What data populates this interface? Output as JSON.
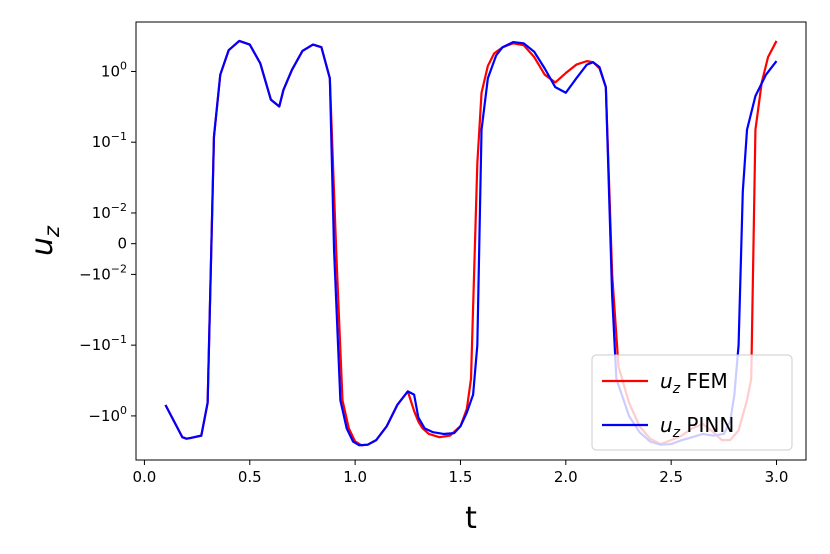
{
  "chart_data": {
    "type": "line",
    "xlabel": "t",
    "ylabel": "u",
    "ylabel_subscript": "z",
    "xlim": [
      -0.04,
      3.14
    ],
    "x_ticks": [
      0.0,
      0.5,
      1.0,
      1.5,
      2.0,
      2.5,
      3.0
    ],
    "x_tick_labels": [
      "0.0",
      "0.5",
      "1.0",
      "1.5",
      "2.0",
      "2.5",
      "3.0"
    ],
    "y_scale": "symlog",
    "y_linthresh": 0.01,
    "ylim": [
      -4.2,
      5.0
    ],
    "y_ticks": [
      1,
      0.1,
      0.01,
      0,
      -0.01,
      -0.1,
      -1
    ],
    "y_tick_labels": [
      {
        "base": "10",
        "exp": "0"
      },
      {
        "base": "10",
        "exp": "−1"
      },
      {
        "base": "10",
        "exp": "−2"
      },
      {
        "base": "0",
        "exp": ""
      },
      {
        "base": "−10",
        "exp": "−2"
      },
      {
        "base": "−10",
        "exp": "−1"
      },
      {
        "base": "−10",
        "exp": "0"
      }
    ],
    "grid": false,
    "legend_position": "lower-right",
    "series": [
      {
        "name": "u_z FEM",
        "legend_main": "u",
        "legend_sub": "z",
        "legend_rest": "FEM",
        "color": "#ff0000",
        "x": [
          0.1,
          0.15,
          0.18,
          0.2,
          0.22,
          0.27,
          0.3,
          0.33,
          0.36,
          0.4,
          0.45,
          0.5,
          0.55,
          0.6,
          0.64,
          0.66,
          0.7,
          0.75,
          0.8,
          0.84,
          0.88,
          0.91,
          0.94,
          0.97,
          1.0,
          1.03,
          1.06,
          1.1,
          1.15,
          1.2,
          1.25,
          1.28,
          1.3,
          1.32,
          1.35,
          1.4,
          1.45,
          1.5,
          1.53,
          1.55,
          1.58,
          1.6,
          1.63,
          1.66,
          1.7,
          1.75,
          1.8,
          1.85,
          1.9,
          1.95,
          2.0,
          2.05,
          2.1,
          2.13,
          2.16,
          2.19,
          2.22,
          2.25,
          2.3,
          2.35,
          2.4,
          2.45,
          2.5,
          2.55,
          2.6,
          2.65,
          2.7,
          2.74,
          2.78,
          2.82,
          2.86,
          2.88,
          2.9,
          2.93,
          2.96,
          3.0
        ],
        "y": [
          -0.7,
          -1.35,
          -2.0,
          -2.1,
          -2.05,
          -1.9,
          -0.65,
          0.12,
          0.9,
          2.0,
          2.7,
          2.4,
          1.3,
          0.4,
          0.32,
          0.55,
          1.05,
          1.95,
          2.4,
          2.2,
          0.8,
          -0.002,
          -0.6,
          -1.5,
          -2.3,
          -2.6,
          -2.55,
          -2.2,
          -1.4,
          -0.7,
          -0.45,
          -0.85,
          -1.2,
          -1.5,
          -1.8,
          -2.0,
          -1.9,
          -1.4,
          -0.8,
          -0.3,
          0.05,
          0.5,
          1.2,
          1.8,
          2.2,
          2.5,
          2.35,
          1.6,
          0.9,
          0.7,
          0.95,
          1.25,
          1.4,
          1.35,
          1.1,
          0.6,
          -0.01,
          -0.2,
          -0.65,
          -1.4,
          -2.1,
          -2.5,
          -2.2,
          -1.9,
          -1.5,
          -1.3,
          -1.7,
          -2.2,
          -2.2,
          -1.6,
          -0.6,
          -0.3,
          0.15,
          0.7,
          1.6,
          2.7
        ]
      },
      {
        "name": "u_z PINN",
        "legend_main": "u",
        "legend_sub": "z",
        "legend_rest": "PINN",
        "color": "#0000ff",
        "x": [
          0.1,
          0.15,
          0.18,
          0.2,
          0.22,
          0.27,
          0.3,
          0.33,
          0.36,
          0.4,
          0.45,
          0.5,
          0.55,
          0.6,
          0.64,
          0.66,
          0.7,
          0.75,
          0.8,
          0.84,
          0.88,
          0.9,
          0.93,
          0.96,
          0.99,
          1.02,
          1.06,
          1.1,
          1.15,
          1.2,
          1.25,
          1.28,
          1.3,
          1.33,
          1.37,
          1.42,
          1.47,
          1.5,
          1.53,
          1.56,
          1.58,
          1.6,
          1.63,
          1.67,
          1.7,
          1.75,
          1.8,
          1.85,
          1.9,
          1.95,
          2.0,
          2.05,
          2.1,
          2.13,
          2.16,
          2.19,
          2.22,
          2.24,
          2.3,
          2.35,
          2.4,
          2.45,
          2.5,
          2.55,
          2.6,
          2.65,
          2.7,
          2.75,
          2.78,
          2.8,
          2.82,
          2.84,
          2.86,
          2.9,
          2.95,
          3.0
        ],
        "y": [
          -0.7,
          -1.35,
          -2.0,
          -2.1,
          -2.05,
          -1.9,
          -0.65,
          0.12,
          0.9,
          2.0,
          2.7,
          2.4,
          1.3,
          0.4,
          0.32,
          0.55,
          1.05,
          1.95,
          2.4,
          2.2,
          0.8,
          -0.002,
          -0.6,
          -1.5,
          -2.3,
          -2.6,
          -2.55,
          -2.2,
          -1.4,
          -0.7,
          -0.45,
          -0.5,
          -1.05,
          -1.5,
          -1.7,
          -1.8,
          -1.75,
          -1.4,
          -0.9,
          -0.5,
          -0.1,
          0.15,
          0.8,
          1.7,
          2.2,
          2.6,
          2.5,
          1.9,
          1.1,
          0.6,
          0.5,
          0.8,
          1.25,
          1.35,
          1.15,
          0.6,
          -0.02,
          -0.3,
          -1.0,
          -1.7,
          -2.3,
          -2.55,
          -2.5,
          -2.2,
          -2.0,
          -1.8,
          -1.9,
          -1.8,
          -1.2,
          -0.5,
          -0.1,
          0.02,
          0.15,
          0.45,
          0.9,
          1.4
        ]
      }
    ]
  }
}
